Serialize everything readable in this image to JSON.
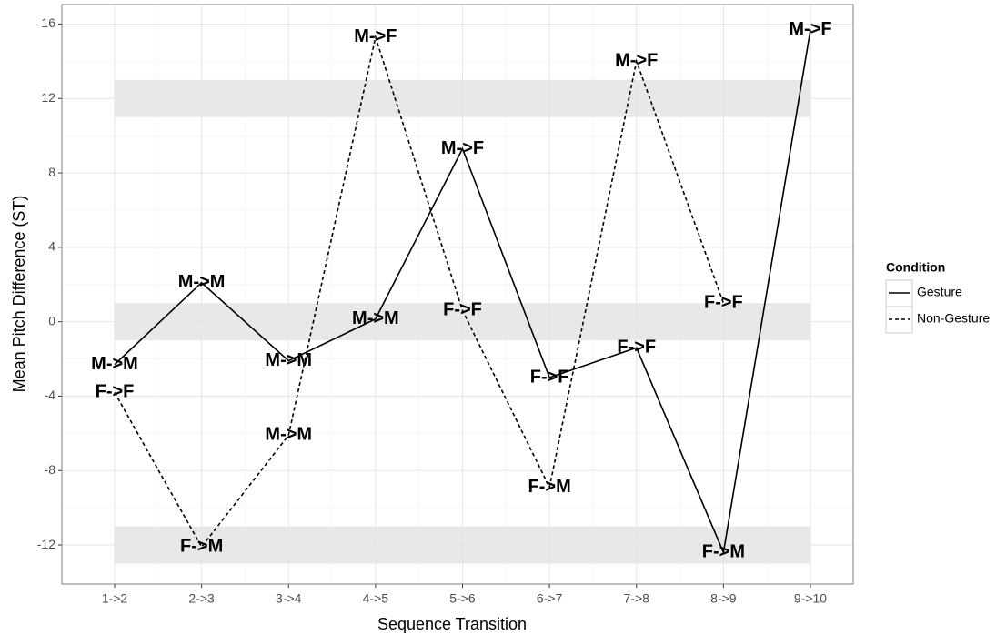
{
  "chart_data": {
    "type": "line",
    "x_label": "Sequence Transition",
    "y_label": "Mean Pitch Difference (ST)",
    "categories": [
      "1->2",
      "2->3",
      "3->4",
      "4->5",
      "5->6",
      "6->7",
      "7->8",
      "8->9",
      "9->10"
    ],
    "legend_title": "Condition",
    "legend_position": "right",
    "series": [
      {
        "name": "Gesture",
        "color": "#000000",
        "dash": "solid",
        "values": [
          -2.3,
          2.1,
          -2.1,
          0.15,
          9.3,
          -3.0,
          -1.4,
          -12.4,
          15.7
        ],
        "point_labels": [
          "M->M",
          "M->M",
          "M->M",
          "M->M",
          "M->F",
          "F->F",
          "F->F",
          "F->M",
          "M->F"
        ]
      },
      {
        "name": "Non-Gesture",
        "color": "#000000",
        "dash": "dashed",
        "values": [
          -3.8,
          -12.1,
          -6.1,
          15.3,
          0.6,
          -8.9,
          14.0,
          1.0,
          null
        ],
        "point_labels": [
          "F->F",
          "F->M",
          "M->M",
          "M->F",
          "F->F",
          "F->M",
          "M->F",
          "F->F",
          null
        ]
      }
    ],
    "bands": [
      [
        11,
        13
      ],
      [
        -1,
        1
      ],
      [
        -13,
        -11
      ]
    ],
    "band_color": "#e8e8e8",
    "ylim": [
      -14.1,
      17.05
    ],
    "yticks": [
      -12,
      -8,
      -4,
      0,
      4,
      8,
      12,
      16
    ],
    "grid": true
  }
}
